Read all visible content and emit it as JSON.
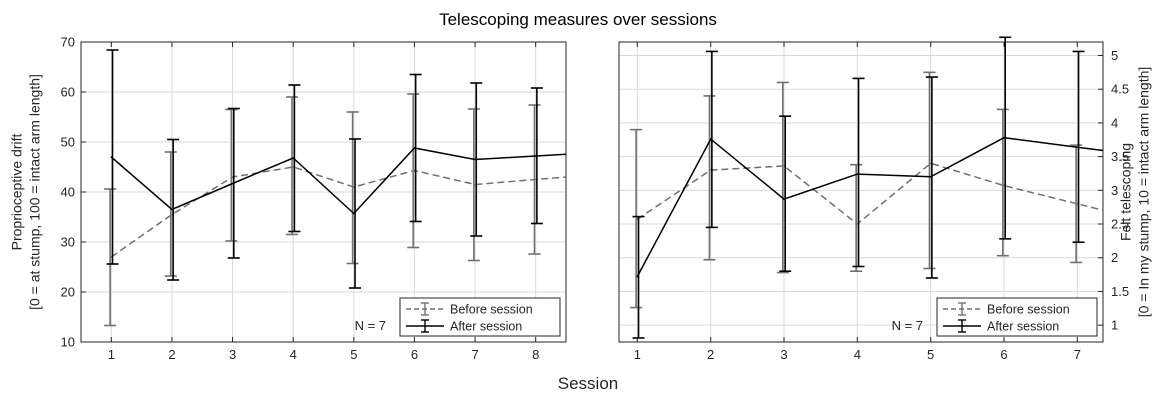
{
  "figure": {
    "title": "Telescoping measures over sessions",
    "xlabel": "Session"
  },
  "chart_data": [
    {
      "type": "line",
      "ylabel_lines": [
        "Proprioceptive drift",
        "[0 = at stump, 100 = intact arm length]"
      ],
      "x": [
        1,
        2,
        3,
        4,
        5,
        6,
        7,
        8
      ],
      "xlim": [
        0.5,
        8.5
      ],
      "ylim": [
        10,
        70
      ],
      "yticks": [
        10,
        20,
        30,
        40,
        50,
        60,
        70
      ],
      "xticks": [
        1,
        2,
        3,
        4,
        5,
        6,
        7,
        8
      ],
      "y_axis_side": "left",
      "grid": true,
      "legend_position": "bottom-right",
      "annotation": "N = 7",
      "series": [
        {
          "name": "Before session",
          "color": "#707070",
          "style": "dashed",
          "values": [
            27,
            35.5,
            43,
            45,
            41,
            44.3,
            41.5,
            42.5
          ],
          "error_low": [
            13.3,
            23.2,
            30.2,
            31.5,
            25.7,
            28.9,
            26.3,
            27.6
          ],
          "error_high": [
            40.6,
            48,
            56.5,
            59,
            56,
            59.6,
            56.6,
            57.4
          ]
        },
        {
          "name": "After session",
          "color": "#000000",
          "style": "solid",
          "values": [
            47,
            36.5,
            41.7,
            46.8,
            35.7,
            48.8,
            46.5,
            47.2
          ],
          "error_low": [
            25.6,
            22.4,
            26.8,
            32.1,
            20.8,
            34.1,
            31.2,
            33.7
          ],
          "error_high": [
            68.4,
            50.5,
            56.7,
            61.4,
            50.6,
            63.5,
            61.8,
            60.8
          ]
        }
      ]
    },
    {
      "type": "line",
      "ylabel_lines": [
        "Felt telescoping",
        "[0 = In my stump, 10 = intact arm length]"
      ],
      "x": [
        1,
        2,
        3,
        4,
        5,
        6,
        7
      ],
      "xlim": [
        0.75,
        7.35
      ],
      "ylim": [
        0.75,
        5.2
      ],
      "yticks": [
        1,
        1.5,
        2,
        2.5,
        3,
        3.5,
        4,
        4.5,
        5
      ],
      "ytick_labels": [
        "1",
        "1.5",
        "2",
        "2.5",
        "3",
        "3.5",
        "4",
        "4.5",
        "5"
      ],
      "xticks": [
        1,
        2,
        3,
        4,
        5,
        6,
        7
      ],
      "y_axis_side": "right",
      "grid": true,
      "legend_position": "bottom-right",
      "annotation": "N = 7",
      "series": [
        {
          "name": "Before session",
          "color": "#707070",
          "style": "dashed",
          "values": [
            2.57,
            3.3,
            3.36,
            2.5,
            3.4,
            3.07,
            2.8
          ],
          "error_low": [
            1.26,
            1.97,
            1.78,
            1.8,
            1.84,
            2.03,
            1.93
          ],
          "error_high": [
            3.9,
            4.4,
            4.6,
            3.38,
            4.75,
            4.2,
            3.67
          ]
        },
        {
          "name": "After session",
          "color": "#000000",
          "style": "solid",
          "values": [
            1.72,
            3.76,
            2.87,
            3.24,
            3.2,
            3.78,
            3.64
          ],
          "error_low": [
            0.81,
            2.45,
            1.8,
            1.87,
            1.7,
            2.28,
            2.23
          ],
          "error_high": [
            2.61,
            5.06,
            4.1,
            4.66,
            4.68,
            5.27,
            5.06
          ]
        }
      ]
    }
  ]
}
